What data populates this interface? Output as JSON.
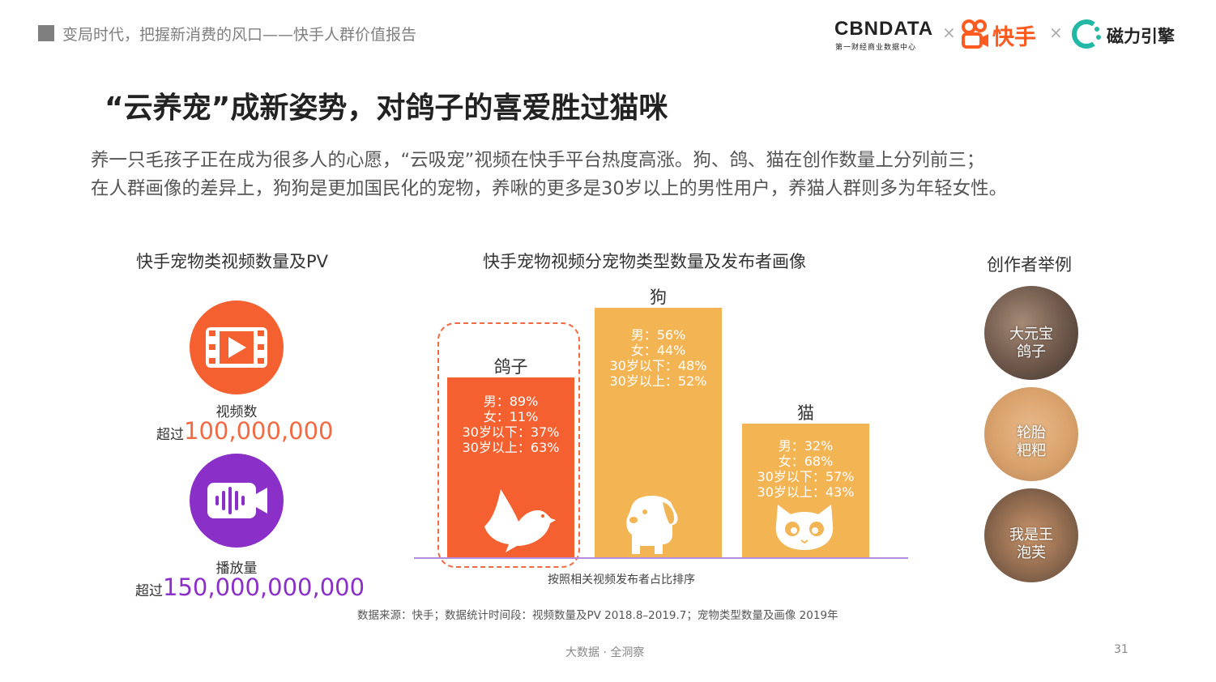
{
  "header": {
    "report_title": "变局时代，把握新消费的风口——快手人群价值报告",
    "logos": {
      "cbn_main": "CBNDATA",
      "cbn_sub": "第一财经商业数据中心",
      "times": "×",
      "kuaishou": "快手",
      "cili": "磁力引擎"
    }
  },
  "page": {
    "title": "“云养宠”成新姿势，对鸽子的喜爱胜过猫咪",
    "desc_line1": "养一只毛孩子正在成为很多人的心愿，“云吸宠”视频在快手平台热度高涨。狗、鸽、猫在创作数量上分列前三；",
    "desc_line2": "在人群画像的差异上，狗狗是更加国民化的宠物，养啾的更多是30岁以上的男性用户，养猫人群则多为年轻女性。"
  },
  "left_panel": {
    "title": "快手宠物类视频数量及PV",
    "video_count": {
      "icon": "film-play-icon",
      "label": "视频数",
      "prefix": "超过",
      "value": "100,000,000",
      "color": "#f26a43"
    },
    "play_count": {
      "icon": "sound-camera-icon",
      "label": "播放量",
      "prefix": "超过",
      "value": "150,000,000,000",
      "color": "#8b2fc9"
    }
  },
  "center_panel": {
    "title": "快手宠物视频分宠物类型数量及发布者画像",
    "axis_note": "按照相关视频发布者占比排序",
    "pets": [
      {
        "name": "鸽子",
        "icon": "dove-icon",
        "color": "#f4602f",
        "lines": [
          "男：89%",
          "女：11%",
          "30岁以下：37%",
          "30岁以上：63%"
        ]
      },
      {
        "name": "狗",
        "icon": "dog-icon",
        "color": "#f3b553",
        "lines": [
          "男：56%",
          "女：44%",
          "30岁以下：48%",
          "30岁以上：52%"
        ]
      },
      {
        "name": "猫",
        "icon": "cat-icon",
        "color": "#f3b553",
        "lines": [
          "男：32%",
          "女：68%",
          "30岁以下：57%",
          "30岁以上：43%"
        ]
      }
    ]
  },
  "right_panel": {
    "title": "创作者举例",
    "creators": [
      {
        "line1": "大元宝",
        "line2": "鸽子"
      },
      {
        "line1": "轮胎",
        "line2": "粑粑"
      },
      {
        "line1": "我是王",
        "line2": "泡芙"
      }
    ]
  },
  "source": "数据来源：快手；数据统计时间段：视频数量及PV 2018.8–2019.7；宠物类型数量及画像 2019年",
  "footer": {
    "center": "大数据 · 全洞察",
    "page_number": "31"
  }
}
